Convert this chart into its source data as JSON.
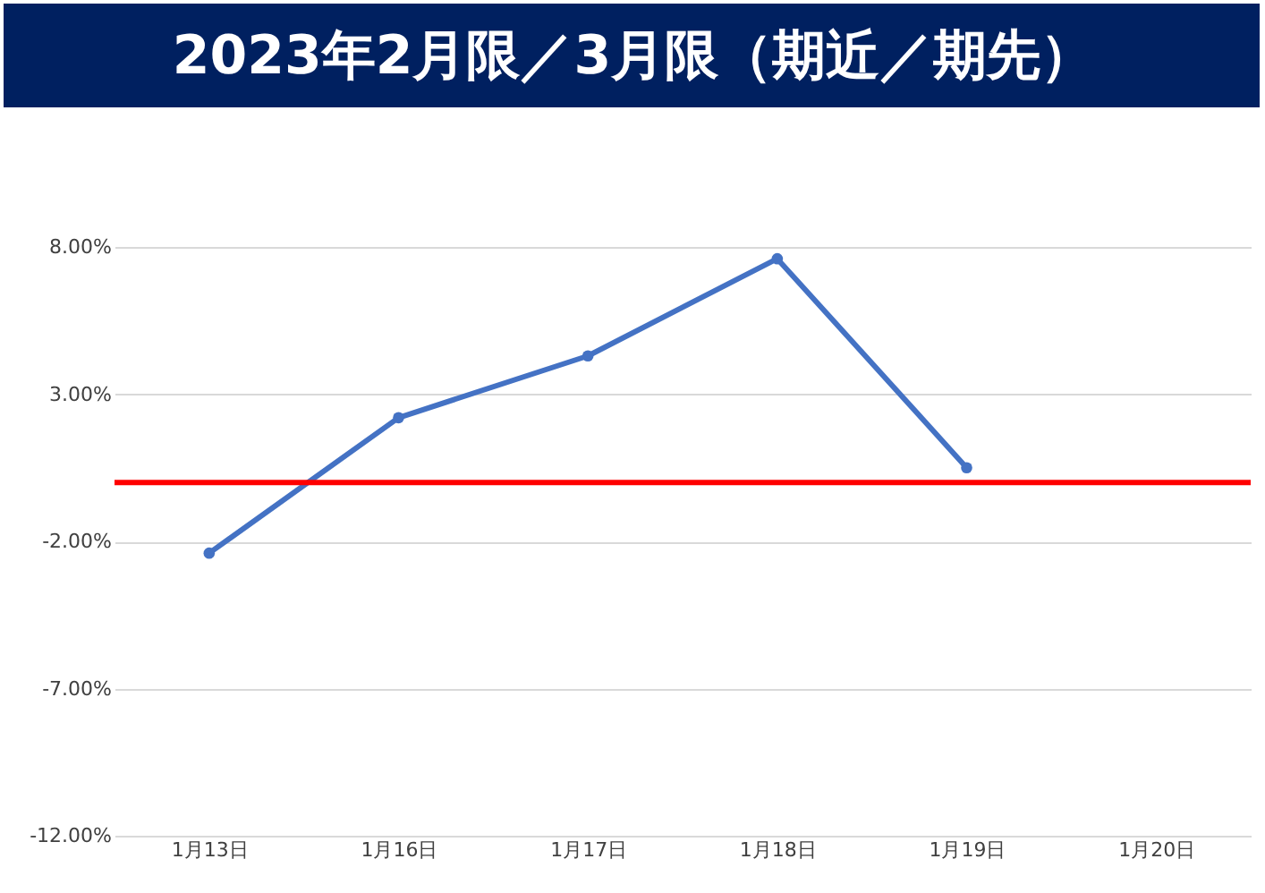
{
  "chart_data": {
    "type": "line",
    "title": "2023年2月限／3月限（期近／期先）",
    "categories": [
      "1月13日",
      "1月16日",
      "1月17日",
      "1月18日",
      "1月19日",
      "1月20日"
    ],
    "series": [
      {
        "color": "#4472c4",
        "values": [
          -2.4,
          2.2,
          4.3,
          7.6,
          0.5,
          null
        ]
      }
    ],
    "ylim": [
      -12,
      8
    ],
    "yticks": [
      {
        "value": -12,
        "label": "-12.00%"
      },
      {
        "value": -7,
        "label": "-7.00%"
      },
      {
        "value": -2,
        "label": "-2.00%"
      },
      {
        "value": 3,
        "label": "3.00%"
      },
      {
        "value": 8,
        "label": "8.00%"
      }
    ],
    "ref_lines": [
      {
        "axis": "y",
        "value": 0,
        "color": "#ff0000"
      }
    ],
    "grid": "y",
    "marker": "circle",
    "line_style": "solid"
  }
}
